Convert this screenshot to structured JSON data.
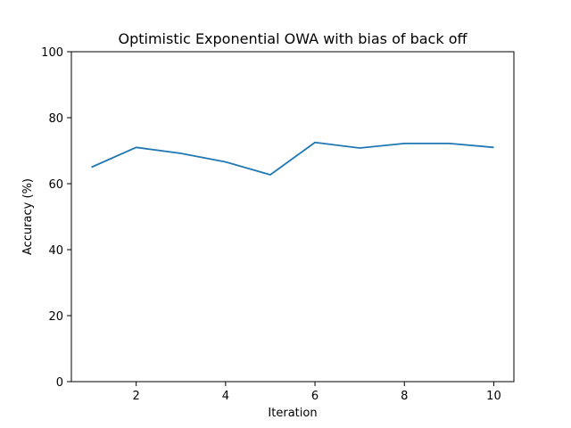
{
  "chart_data": {
    "type": "line",
    "title": "Optimistic Exponential OWA with bias of back off",
    "xlabel": "Iteration",
    "ylabel": "Accuracy (%)",
    "x": [
      1,
      2,
      3,
      4,
      5,
      6,
      7,
      8,
      9,
      10
    ],
    "series": [
      {
        "values": [
          65.0,
          71.0,
          69.2,
          66.6,
          62.7,
          72.5,
          70.8,
          72.2,
          72.2,
          71.0
        ],
        "color": "#1f77b4"
      }
    ],
    "xlim": [
      0.55,
      10.45
    ],
    "ylim": [
      0,
      100
    ],
    "xticks": [
      2,
      4,
      6,
      8,
      10
    ],
    "yticks": [
      0,
      20,
      40,
      60,
      80,
      100
    ],
    "grid": false,
    "legend": "none"
  }
}
